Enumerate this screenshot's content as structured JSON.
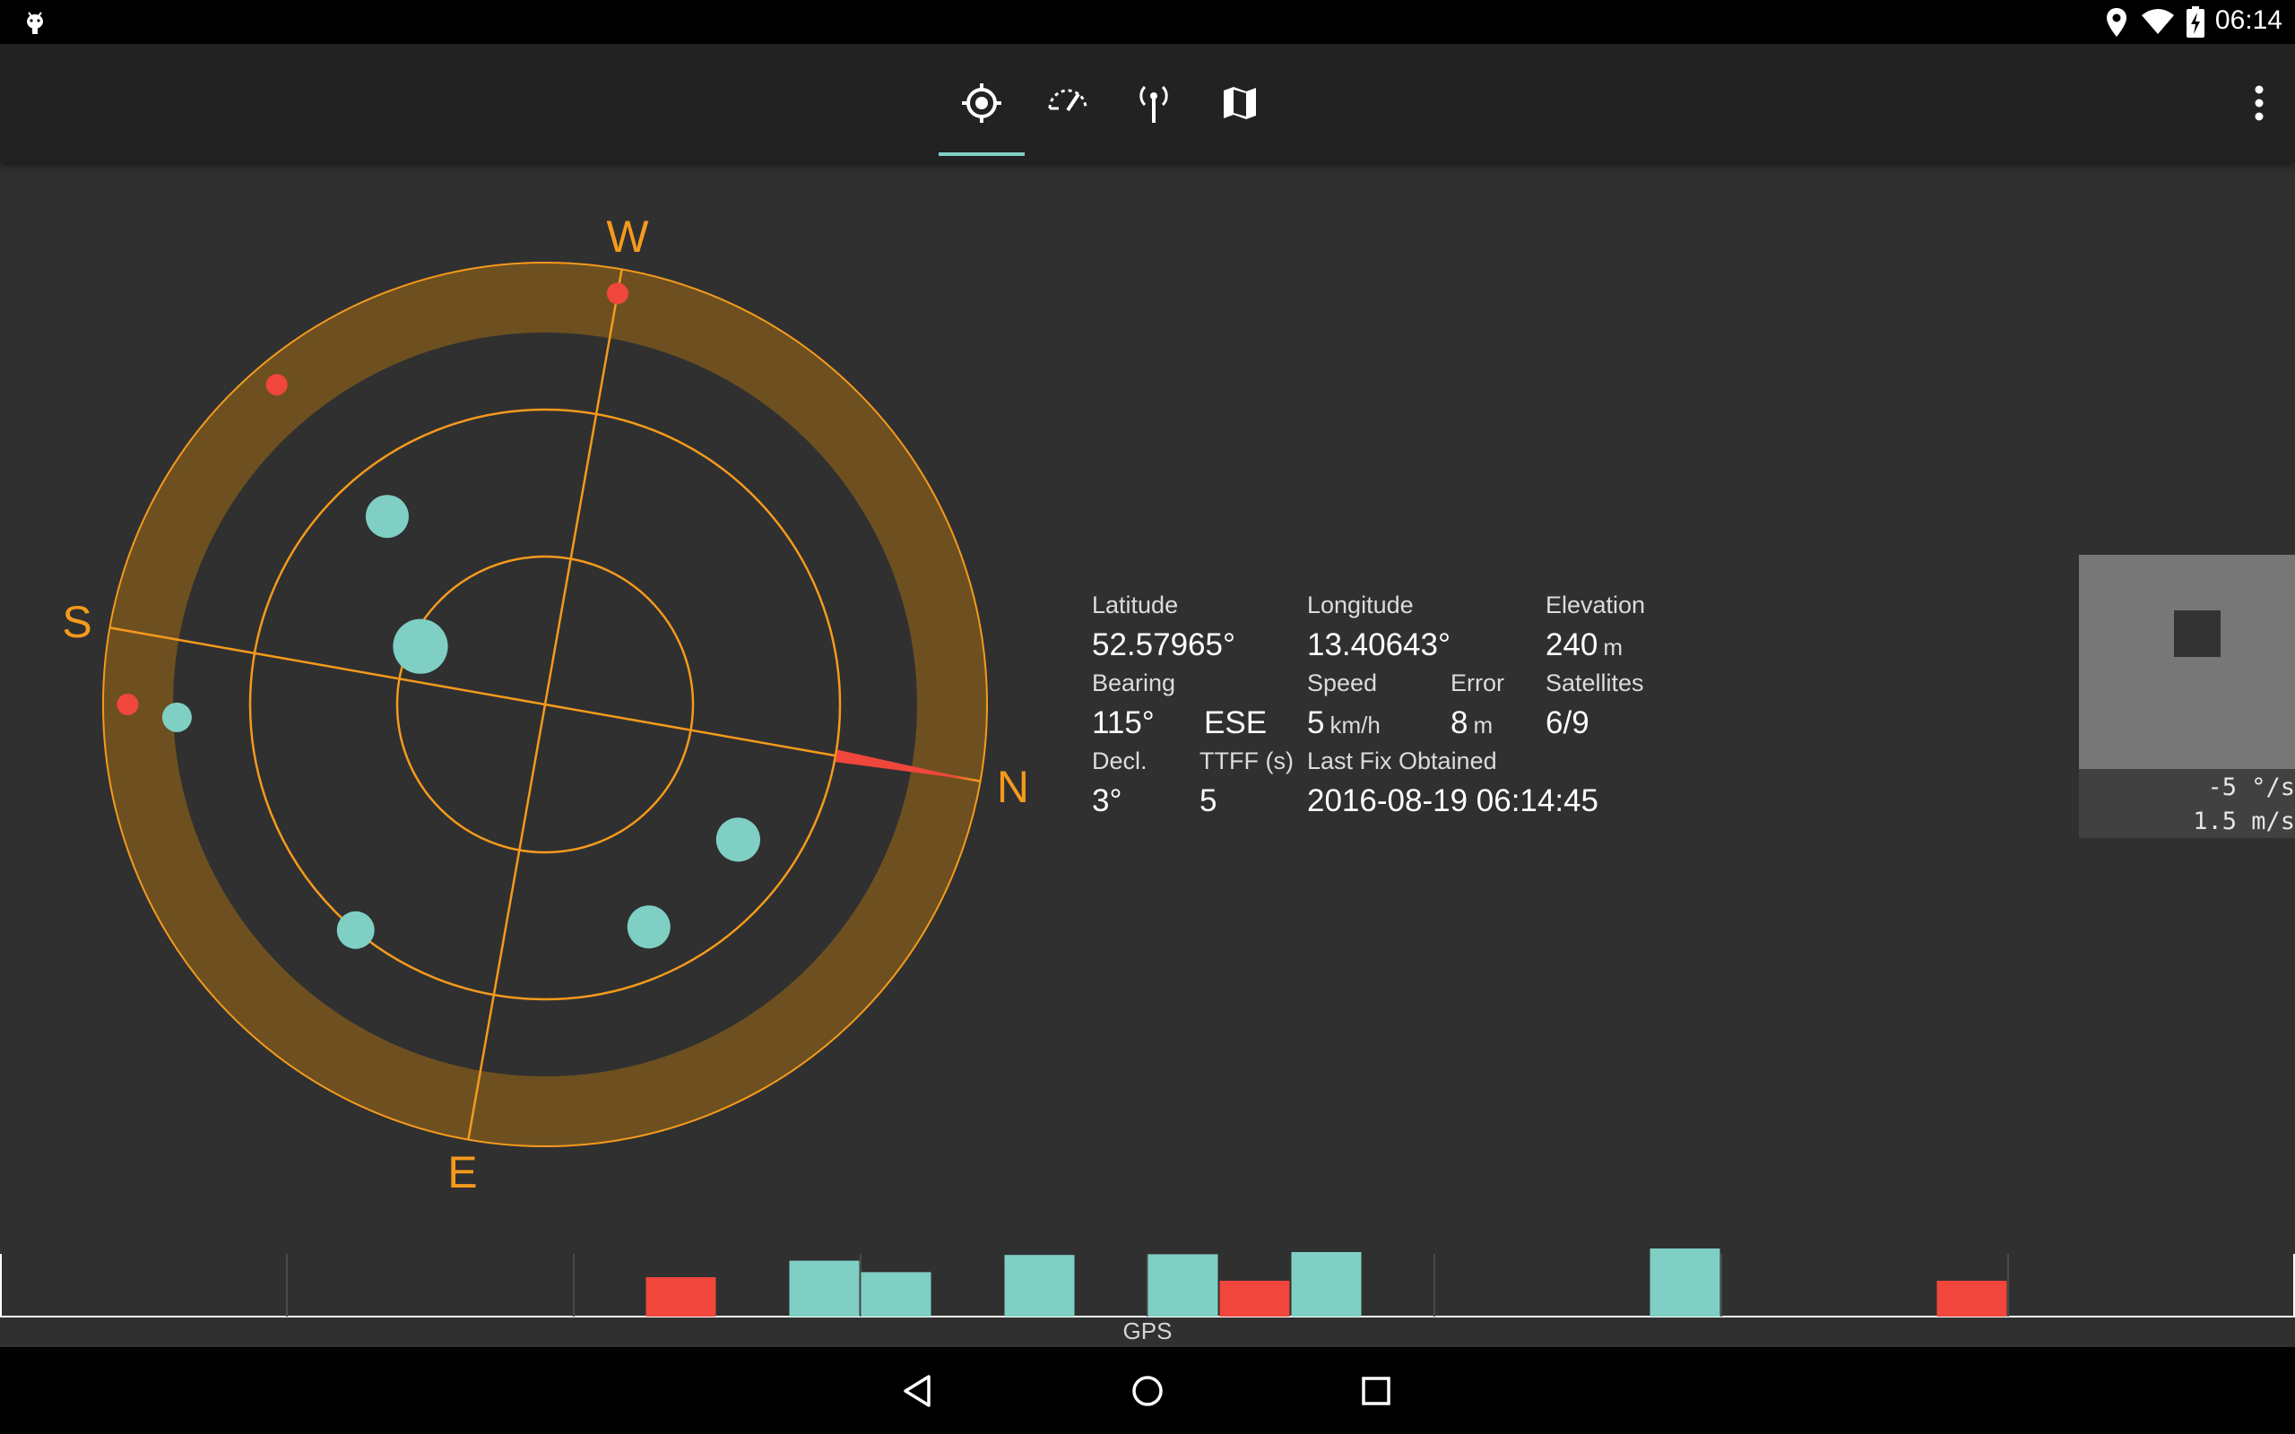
{
  "status_bar": {
    "time": "06:14",
    "icons": [
      "android-debug-icon",
      "location-icon",
      "wifi-icon",
      "battery-charging-icon"
    ]
  },
  "toolbar": {
    "tabs": [
      {
        "name": "status",
        "icon": "gps-fix-icon",
        "selected": true
      },
      {
        "name": "speed",
        "icon": "speedometer-icon",
        "selected": false
      },
      {
        "name": "signal",
        "icon": "antenna-icon",
        "selected": false
      },
      {
        "name": "map",
        "icon": "map-icon",
        "selected": false
      }
    ],
    "overflow_icon": "more-vert-icon",
    "accent": "#7fcfc4"
  },
  "radar": {
    "compass": {
      "n": "N",
      "e": "E",
      "s": "S",
      "w": "W"
    },
    "ring_color": "#f59a1c",
    "band_color": "#6e5020",
    "used_color": "#7fcfc4",
    "unused_color": "#f0463c",
    "satellites": [
      {
        "azimuth": 270,
        "elevation": 5,
        "used": false
      },
      {
        "azimuth": 55,
        "elevation": 40,
        "used": true
      },
      {
        "azimuth": 25,
        "elevation": 42,
        "used": true
      },
      {
        "azimuth": 120,
        "elevation": 30,
        "used": true
      },
      {
        "azimuth": 168,
        "elevation": 15,
        "used": true
      },
      {
        "azimuth": 195,
        "elevation": 62,
        "used": true
      },
      {
        "azimuth": 220,
        "elevation": 5,
        "used": false
      },
      {
        "azimuth": 220,
        "elevation": 40,
        "used": true
      },
      {
        "azimuth": 170,
        "elevation": 5,
        "used": false
      }
    ]
  },
  "info": {
    "latitude": {
      "label": "Latitude",
      "value": "52.57965°"
    },
    "longitude": {
      "label": "Longitude",
      "value": "13.40643°"
    },
    "elevation": {
      "label": "Elevation",
      "value": "240",
      "unit": "m"
    },
    "bearing": {
      "label": "Bearing",
      "value": "115°",
      "cardinal": "ESE"
    },
    "speed": {
      "label": "Speed",
      "value": "5",
      "unit": "km/h"
    },
    "error": {
      "label": "Error",
      "value": "8",
      "unit": "m"
    },
    "satellites": {
      "label": "Satellites",
      "value": "6/9"
    },
    "declination": {
      "label": "Decl.",
      "value": "3°"
    },
    "ttff": {
      "label": "TTFF (s)",
      "value": "5"
    },
    "last_fix": {
      "label": "Last Fix Obtained",
      "value": "2016-08-19 06:14:45"
    }
  },
  "gyro": {
    "rotation": "-5 °/s",
    "speed": "1.5 m/s"
  },
  "signal_chart": {
    "label": "GPS",
    "slots": 32,
    "bars": [
      {
        "slot": 9,
        "level": 0.55,
        "used": false
      },
      {
        "slot": 11,
        "level": 0.78,
        "used": true
      },
      {
        "slot": 12,
        "level": 0.62,
        "used": true
      },
      {
        "slot": 14,
        "level": 0.86,
        "used": true
      },
      {
        "slot": 16,
        "level": 0.87,
        "used": true
      },
      {
        "slot": 17,
        "level": 0.5,
        "used": false
      },
      {
        "slot": 18,
        "level": 0.9,
        "used": true
      },
      {
        "slot": 23,
        "level": 0.95,
        "used": true
      },
      {
        "slot": 27,
        "level": 0.5,
        "used": false
      }
    ]
  },
  "nav_bar": {
    "buttons": [
      "back-icon",
      "home-icon",
      "recents-icon"
    ]
  }
}
